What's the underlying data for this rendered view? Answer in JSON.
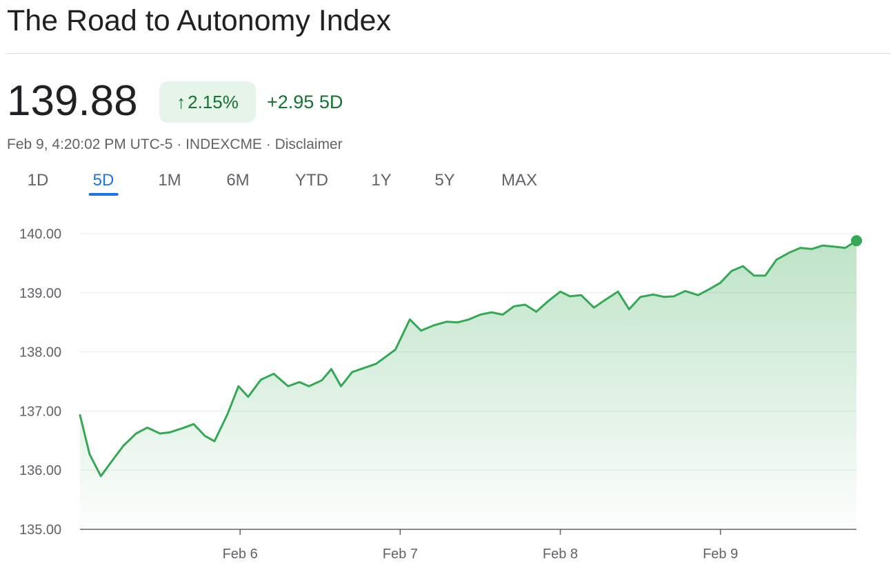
{
  "header": {
    "title": "The Road to Autonomy Index"
  },
  "quote": {
    "price": "139.88",
    "percent_change": "2.15%",
    "direction_icon": "arrow-up-icon",
    "point_change": "+2.95 5D",
    "timestamp_line": "Feb 9, 4:20:02 PM UTC-5 · INDEXCME · Disclaimer",
    "positive_color": "#137333",
    "badge_bg": "#e6f4ea"
  },
  "tabs": [
    {
      "label": "1D",
      "active": false
    },
    {
      "label": "5D",
      "active": true
    },
    {
      "label": "1M",
      "active": false
    },
    {
      "label": "6M",
      "active": false
    },
    {
      "label": "YTD",
      "active": false
    },
    {
      "label": "1Y",
      "active": false
    },
    {
      "label": "5Y",
      "active": false
    },
    {
      "label": "MAX",
      "active": false
    }
  ],
  "chart_data": {
    "type": "area",
    "title": "",
    "xlabel": "",
    "ylabel": "",
    "ylim": [
      135,
      140
    ],
    "yticks": [
      "140.00",
      "139.00",
      "138.00",
      "137.00",
      "136.00",
      "135.00"
    ],
    "ytick_values": [
      140,
      139,
      138,
      137,
      136,
      135
    ],
    "xticks": [
      "Feb 6",
      "Feb 7",
      "Feb 8",
      "Feb 9"
    ],
    "xtick_values": [
      1,
      2,
      3,
      4
    ],
    "xlim": [
      0.0,
      4.85
    ],
    "grid": true,
    "line_color": "#34a853",
    "fill_color": "#34a853",
    "series": [
      {
        "x": [
          0.0,
          0.06,
          0.13,
          0.19,
          0.27,
          0.35,
          0.42,
          0.5,
          0.56,
          0.64,
          0.71,
          0.78,
          0.84,
          0.92,
          0.99,
          1.05,
          1.13,
          1.21,
          1.3,
          1.37,
          1.43,
          1.51,
          1.57,
          1.63,
          1.7,
          1.85,
          1.97,
          2.06,
          2.13,
          2.21,
          2.29,
          2.36,
          2.43,
          2.5,
          2.57,
          2.64,
          2.71,
          2.78,
          2.85,
          2.92,
          3.0,
          3.06,
          3.13,
          3.21,
          3.28,
          3.36,
          3.43,
          3.5,
          3.58,
          3.65,
          3.71,
          3.78,
          3.86,
          3.93,
          4.0,
          4.07,
          4.14,
          4.21,
          4.28,
          4.35,
          4.43,
          4.5,
          4.57,
          4.64,
          4.71,
          4.78,
          4.85
        ],
        "y": [
          136.93,
          136.27,
          135.9,
          136.12,
          136.41,
          136.62,
          136.72,
          136.62,
          136.64,
          136.71,
          136.78,
          136.58,
          136.49,
          136.94,
          137.42,
          137.24,
          137.53,
          137.63,
          137.42,
          137.49,
          137.42,
          137.52,
          137.71,
          137.42,
          137.66,
          137.8,
          138.04,
          138.55,
          138.36,
          138.45,
          138.51,
          138.5,
          138.55,
          138.63,
          138.67,
          138.63,
          138.77,
          138.8,
          138.68,
          138.85,
          139.02,
          138.94,
          138.96,
          138.75,
          138.88,
          139.02,
          138.72,
          138.93,
          138.97,
          138.93,
          138.94,
          139.03,
          138.96,
          139.06,
          139.17,
          139.37,
          139.45,
          139.29,
          139.29,
          139.56,
          139.68,
          139.76,
          139.74,
          139.8,
          139.78,
          139.76,
          139.88
        ]
      }
    ],
    "last_point_marker": true
  }
}
